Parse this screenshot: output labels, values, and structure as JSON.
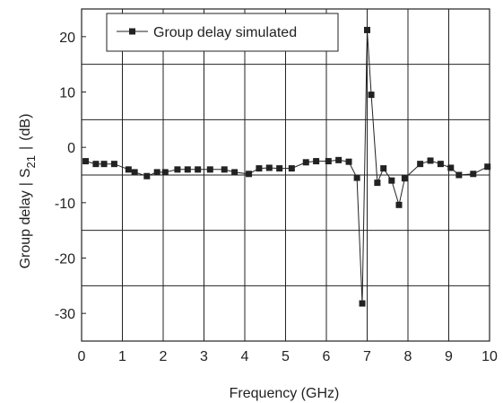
{
  "chart_data": {
    "type": "line",
    "xlabel": "Frequency (GHz)",
    "ylabel": {
      "prefix": "Group delay",
      "sep1": "|",
      "sym": "S",
      "sub": "21",
      "sep2": "|",
      "unit": "(dB)"
    },
    "xlim": [
      0,
      10
    ],
    "ylim": [
      -35,
      25
    ],
    "x_ticks": [
      0,
      1,
      2,
      3,
      4,
      5,
      6,
      7,
      8,
      9,
      10
    ],
    "y_ticks": [
      20,
      10,
      0,
      -10,
      -20,
      -30
    ],
    "grid": {
      "vertical": [
        1,
        2,
        3,
        4,
        5,
        6,
        7,
        8,
        9
      ],
      "horizontal": [
        15,
        5,
        -5,
        -15,
        -25
      ]
    },
    "legend_position": "top-left",
    "series": [
      {
        "name": "Group delay simulated",
        "marker": "square",
        "color": "#222222",
        "x": [
          0.1,
          0.35,
          0.55,
          0.8,
          1.15,
          1.3,
          1.6,
          1.85,
          2.05,
          2.35,
          2.6,
          2.85,
          3.15,
          3.5,
          3.75,
          4.1,
          4.35,
          4.6,
          4.85,
          5.15,
          5.5,
          5.75,
          6.05,
          6.3,
          6.55,
          6.75,
          6.88,
          7.0,
          7.1,
          7.25,
          7.4,
          7.6,
          7.78,
          7.92,
          8.3,
          8.55,
          8.8,
          9.05,
          9.25,
          9.6,
          9.95
        ],
        "y": [
          -2.5,
          -3.0,
          -3.0,
          -3.0,
          -4.0,
          -4.5,
          -5.2,
          -4.5,
          -4.5,
          -4.0,
          -4.0,
          -4.0,
          -4.0,
          -4.0,
          -4.5,
          -4.8,
          -3.8,
          -3.7,
          -3.8,
          -3.8,
          -2.7,
          -2.5,
          -2.5,
          -2.3,
          -2.6,
          -5.5,
          -28.2,
          21.2,
          9.5,
          -6.4,
          -3.8,
          -6.0,
          -10.4,
          -5.6,
          -3.0,
          -2.4,
          -3.0,
          -3.7,
          -5.0,
          -4.8,
          -3.5
        ]
      }
    ]
  }
}
